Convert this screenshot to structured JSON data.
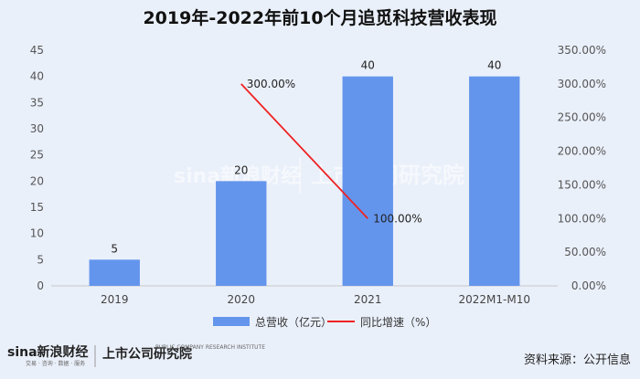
{
  "chart_data": {
    "type": "bar",
    "title": "2019年-2022年前10个月追觅科技营收表现",
    "categories": [
      "2019",
      "2020",
      "2021",
      "2022M1-M10"
    ],
    "series": [
      {
        "name": "总营收（亿元）",
        "type": "bar",
        "axis": "left",
        "values": [
          5,
          20,
          40,
          40
        ],
        "labels": [
          "5",
          "20",
          "40",
          "40"
        ],
        "color": "#6495ed"
      },
      {
        "name": "同比增速（%）",
        "type": "line",
        "axis": "right",
        "values": [
          null,
          300,
          100,
          null
        ],
        "labels": [
          "",
          "300.00%",
          "100.00%",
          ""
        ],
        "color": "#ee2222"
      }
    ],
    "left_axis": {
      "min": 0,
      "max": 45,
      "step": 5,
      "tick_labels": [
        "0",
        "5",
        "10",
        "15",
        "20",
        "25",
        "30",
        "35",
        "40",
        "45"
      ]
    },
    "right_axis": {
      "min": 0,
      "max": 350,
      "step": 50,
      "tick_labels": [
        "0.00%",
        "50.00%",
        "100.00%",
        "150.00%",
        "200.00%",
        "250.00%",
        "300.00%",
        "350.00%"
      ]
    },
    "legend_position": "bottom-center",
    "grid": false
  },
  "watermark": {
    "brand": "sina新浪财经",
    "institute": "上市公司研究院"
  },
  "footer": {
    "brand": "sina新浪财经",
    "brand_sub": "交易 · 咨询 · 数据 · 服务",
    "institute": "上市公司研究院",
    "institute_sub": "PUBLIC COMPANY RESEARCH INSTITUTE",
    "source": "资料来源：公开信息"
  }
}
